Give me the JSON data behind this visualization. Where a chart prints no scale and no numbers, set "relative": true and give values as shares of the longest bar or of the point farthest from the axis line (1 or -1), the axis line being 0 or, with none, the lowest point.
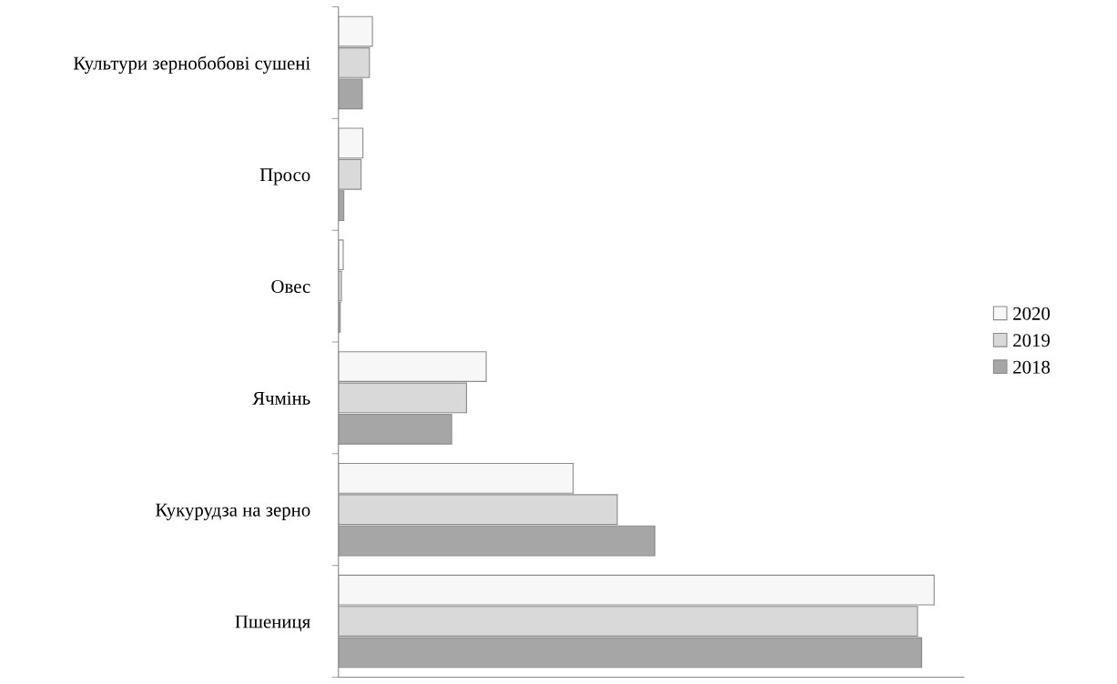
{
  "chart_data": {
    "type": "bar",
    "orientation": "horizontal",
    "relative": true,
    "categories": [
      "Культури зернобобові сушені",
      "Просо",
      "Овес",
      "Ячмінь",
      "Кукурудза на зерно",
      "Пшениця"
    ],
    "series": [
      {
        "name": "2020",
        "color": "#f7f7f7",
        "values": [
          0.057,
          0.041,
          0.008,
          0.248,
          0.394,
          1
        ]
      },
      {
        "name": "2019",
        "color": "#d9d9d9",
        "values": [
          0.052,
          0.038,
          0.005,
          0.215,
          0.468,
          0.972
        ]
      },
      {
        "name": "2018",
        "color": "#a6a6a6",
        "values": [
          0.04,
          0.009,
          0.003,
          0.19,
          0.531,
          0.979
        ]
      }
    ],
    "legend": "right",
    "grid": false,
    "tick_labels": "y"
  }
}
